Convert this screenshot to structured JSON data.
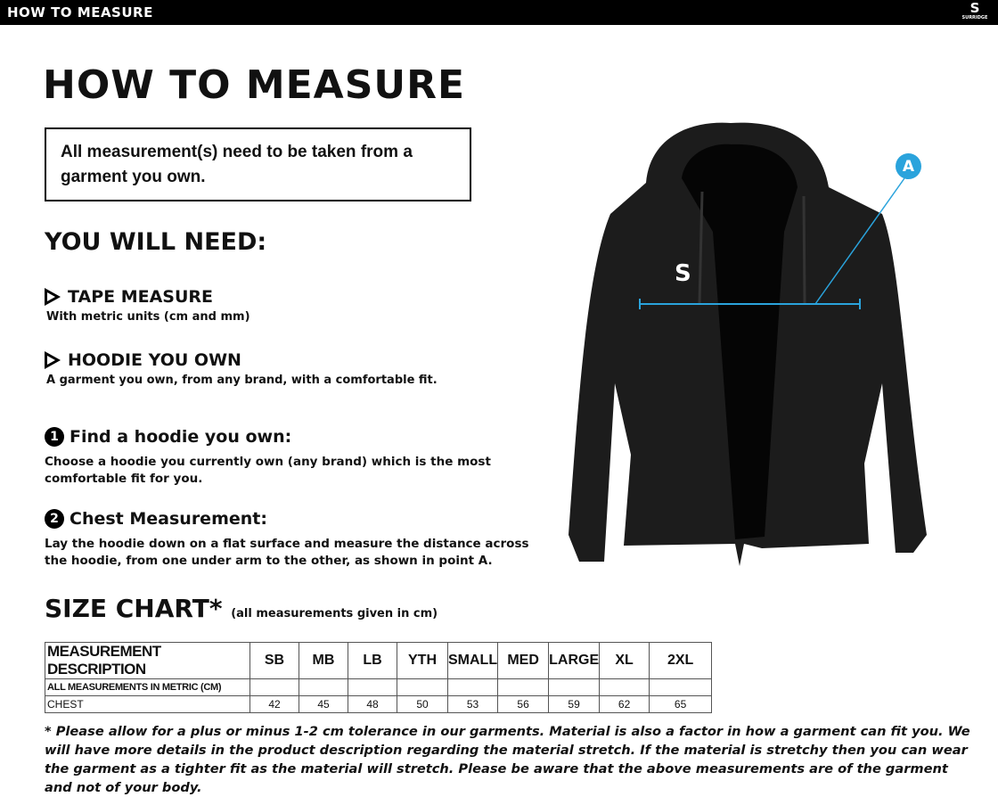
{
  "header": {
    "title": "HOW TO MEASURE",
    "logo_text": "SURRIDGE"
  },
  "page_title": "HOW TO MEASURE",
  "notice": "All measurement(s) need to be taken from a garment you own.",
  "you_will_need": {
    "title": "YOU WILL NEED:",
    "items": [
      {
        "title": "TAPE MEASURE",
        "desc": "With metric units (cm and mm)"
      },
      {
        "title": "HOODIE YOU OWN",
        "desc": "A garment you own, from any brand, with a comfortable fit."
      }
    ]
  },
  "steps": [
    {
      "num": "1",
      "title": "Find a hoodie you own:",
      "desc": "Choose a hoodie you currently own (any brand) which is the most comfortable fit for you."
    },
    {
      "num": "2",
      "title": "Chest Measurement:",
      "desc": "Lay the hoodie down on a flat surface and measure the distance across the hoodie, from one under arm to the other, as shown in point A."
    }
  ],
  "diagram": {
    "point_label": "A",
    "accent_color": "#2aa3dc"
  },
  "size_chart": {
    "title": "SIZE CHART*",
    "note": "(all measurements given in cm)",
    "headers": [
      "MEASUREMENT DESCRIPTION",
      "SB",
      "MB",
      "LB",
      "YTH",
      "SMALL",
      "MED",
      "LARGE",
      "XL",
      "2XL"
    ],
    "rows": [
      [
        "ALL MEASUREMENTS IN METRIC (CM)",
        "",
        "",
        "",
        "",
        "",
        "",
        "",
        "",
        ""
      ],
      [
        "CHEST",
        "42",
        "45",
        "48",
        "50",
        "53",
        "56",
        "59",
        "62",
        "65"
      ]
    ]
  },
  "footnote": "* Please allow for a plus or minus 1-2 cm tolerance in our garments. Material is also a factor in how a garment can fit you. We will have more details in the product description regarding the material stretch.  If the material is stretchy then you can wear the garment as a tighter fit as the material will stretch.  Please be aware that the above measurements are of the garment and not of your body."
}
